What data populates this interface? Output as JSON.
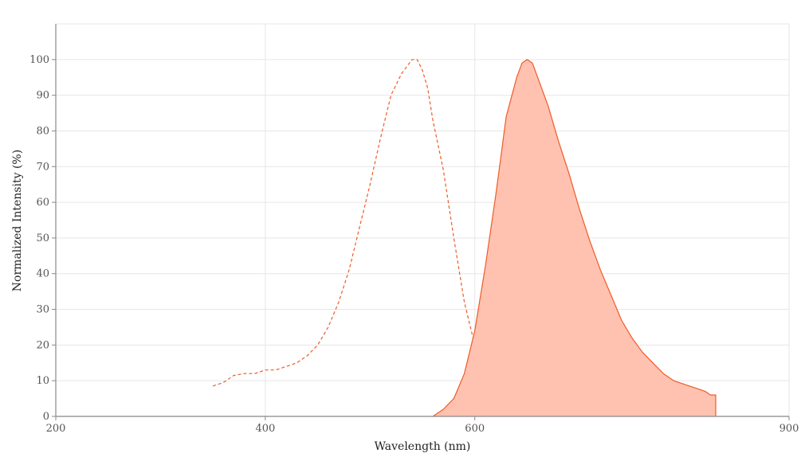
{
  "chart_data": {
    "type": "area",
    "xlabel": "Wavelength (nm)",
    "ylabel": "Normalized Intensity (%)",
    "xlim": [
      200,
      900
    ],
    "ylim": [
      0,
      110
    ],
    "x_ticks": [
      200,
      400,
      600,
      900
    ],
    "y_ticks": [
      0,
      10,
      20,
      30,
      40,
      50,
      60,
      70,
      80,
      90,
      100
    ],
    "grid": true,
    "legend": "none",
    "colors": {
      "line": "#f05a28",
      "fill": "#ffc2b0",
      "grid": "#e6e6e6",
      "axis": "#888888"
    },
    "series": [
      {
        "style": "dashed",
        "filled": false,
        "x": [
          350,
          360,
          370,
          380,
          390,
          400,
          410,
          420,
          430,
          440,
          450,
          460,
          470,
          480,
          490,
          500,
          510,
          520,
          530,
          540,
          545,
          550,
          555,
          560,
          570,
          580,
          590,
          600,
          610,
          620,
          630,
          640,
          650,
          660,
          666
        ],
        "y": [
          8.5,
          9.5,
          11.5,
          12,
          12,
          13,
          13,
          14,
          15,
          17,
          20,
          25,
          32,
          41,
          53,
          65,
          78,
          90,
          96,
          100,
          100,
          97,
          92,
          83,
          69,
          50,
          32,
          20,
          12,
          6,
          4,
          2,
          1,
          0.5,
          0
        ]
      },
      {
        "style": "solid",
        "filled": true,
        "x": [
          560,
          565,
          570,
          580,
          590,
          600,
          610,
          620,
          625,
          630,
          640,
          645,
          650,
          655,
          660,
          670,
          680,
          690,
          700,
          710,
          720,
          730,
          740,
          750,
          760,
          770,
          780,
          790,
          800,
          810,
          820,
          825,
          830,
          830
        ],
        "y": [
          0,
          1,
          2,
          5,
          12,
          24,
          42,
          62,
          73,
          84,
          95,
          99,
          100,
          99,
          95,
          87,
          77,
          68,
          58,
          49,
          41,
          34,
          27,
          22,
          18,
          15,
          12,
          10,
          9,
          8,
          7,
          6,
          6,
          0
        ]
      }
    ]
  }
}
